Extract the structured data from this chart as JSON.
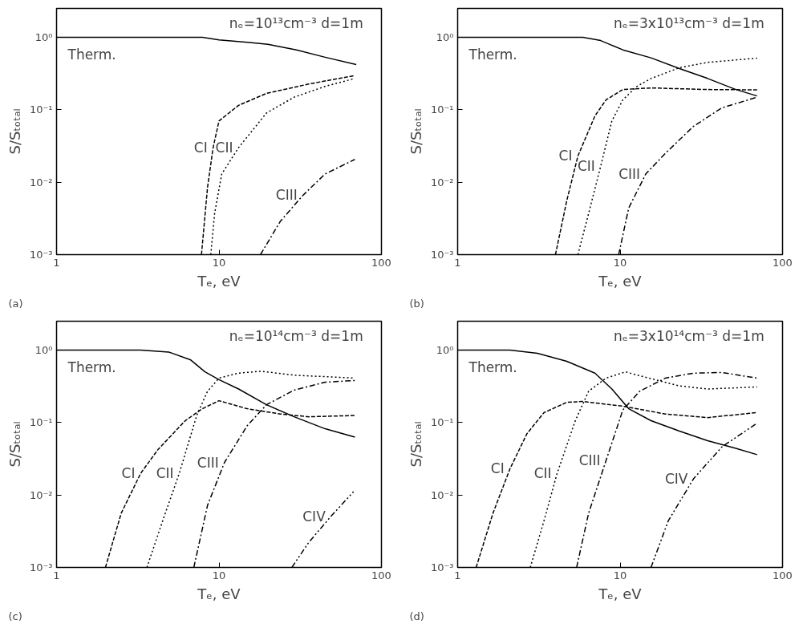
{
  "chart_data": [
    {
      "type": "line",
      "title": "(a)",
      "xlabel": "Tₑ, eV",
      "ylabel": "S/Sₜₒₜₐₗ",
      "log": "xy",
      "grid": false,
      "xlim": [
        1,
        100
      ],
      "ylim": [
        0.001,
        2.5
      ],
      "xticks": [
        1,
        10,
        100
      ],
      "yticks": [
        {
          "value": 0.001,
          "label": "10⁻³"
        },
        {
          "value": 0.01,
          "label": "10⁻²"
        },
        {
          "value": 0.1,
          "label": "10⁻¹"
        },
        {
          "value": 1,
          "label": "10⁰"
        }
      ],
      "series": [
        {
          "name": "Therm.",
          "color": "#000000",
          "line_style": "solid",
          "x": [
            1,
            7.9,
            10,
            15,
            20,
            30,
            45,
            70
          ],
          "values": [
            1,
            1,
            0.92,
            0.85,
            0.8,
            0.67,
            0.53,
            0.42
          ]
        },
        {
          "name": "CI",
          "color": "#000000",
          "line_style": "dashed",
          "x": [
            7.8,
            8.5,
            9.2,
            10,
            13.2,
            19.6,
            35.6,
            68.6
          ],
          "values": [
            0.001,
            0.0085,
            0.03,
            0.07,
            0.115,
            0.168,
            0.226,
            0.296
          ]
        },
        {
          "name": "CII",
          "color": "#000000",
          "line_style": "dotted",
          "x": [
            8.9,
            9.4,
            10.4,
            13.2,
            19.6,
            29,
            45,
            68.6
          ],
          "values": [
            0.001,
            0.0037,
            0.013,
            0.03,
            0.09,
            0.149,
            0.21,
            0.27
          ]
        },
        {
          "name": "CIII",
          "color": "#000000",
          "line_style": "dashdot",
          "x": [
            18,
            23.9,
            32.9,
            45,
            68.6
          ],
          "values": [
            0.001,
            0.0029,
            0.0066,
            0.013,
            0.0206
          ]
        }
      ],
      "annotations": [
        "nₑ=10¹³cm⁻³   d=1m"
      ]
    },
    {
      "type": "line",
      "title": "(b)",
      "xlabel": "Tₑ, eV",
      "ylabel": "S/Sₜₒₜₐₗ",
      "log": "xy",
      "grid": false,
      "xlim": [
        1,
        100
      ],
      "ylim": [
        0.001,
        2.5
      ],
      "xticks": [
        1,
        10,
        100
      ],
      "yticks": [
        {
          "value": 0.001,
          "label": "10⁻³"
        },
        {
          "value": 0.01,
          "label": "10⁻²"
        },
        {
          "value": 0.1,
          "label": "10⁻¹"
        },
        {
          "value": 1,
          "label": "10⁰"
        }
      ],
      "series": [
        {
          "name": "Therm.",
          "color": "#000000",
          "line_style": "solid",
          "x": [
            1,
            5.9,
            7.6,
            10.4,
            15.5,
            23.2,
            34.6,
            51.6,
            69.7
          ],
          "values": [
            1,
            1,
            0.9,
            0.67,
            0.52,
            0.37,
            0.27,
            0.19,
            0.155
          ]
        },
        {
          "name": "CI",
          "color": "#000000",
          "line_style": "dashed",
          "x": [
            4,
            4.7,
            5.5,
            7,
            8.2,
            10.4,
            15.5,
            34.6,
            69.7
          ],
          "values": [
            0.001,
            0.0056,
            0.023,
            0.082,
            0.137,
            0.19,
            0.2,
            0.19,
            0.188
          ]
        },
        {
          "name": "CII",
          "color": "#000000",
          "line_style": "dotted",
          "x": [
            5.5,
            6.4,
            7.6,
            8.9,
            10.4,
            12.7,
            15.5,
            23.2,
            34.6,
            69.7
          ],
          "values": [
            0.001,
            0.0037,
            0.0167,
            0.07,
            0.137,
            0.21,
            0.27,
            0.38,
            0.45,
            0.515
          ]
        },
        {
          "name": "CIII",
          "color": "#000000",
          "line_style": "dashdot",
          "x": [
            9.8,
            11.3,
            14.4,
            19,
            28.3,
            42.3,
            69.7
          ],
          "values": [
            0.001,
            0.0044,
            0.013,
            0.025,
            0.059,
            0.106,
            0.149
          ]
        }
      ],
      "annotations": [
        "nₑ=3x10¹³cm⁻³   d=1m"
      ]
    },
    {
      "type": "line",
      "title": "(c)",
      "xlabel": "Tₑ, eV",
      "ylabel": "S/Sₜₒₜₐₗ",
      "log": "xy",
      "grid": false,
      "xlim": [
        1,
        100
      ],
      "ylim": [
        0.001,
        2.5
      ],
      "xticks": [
        1,
        10,
        100
      ],
      "yticks": [
        {
          "value": 0.001,
          "label": "10⁻³"
        },
        {
          "value": 0.01,
          "label": "10⁻²"
        },
        {
          "value": 0.1,
          "label": "10⁻¹"
        },
        {
          "value": 1,
          "label": "10⁰"
        }
      ],
      "series": [
        {
          "name": "Therm.",
          "color": "#000000",
          "line_style": "solid",
          "x": [
            1,
            3.3,
            4.9,
            6.7,
            8.2,
            10,
            13.2,
            19.6,
            29,
            45,
            68.6
          ],
          "values": [
            1,
            1,
            0.94,
            0.73,
            0.5,
            0.39,
            0.29,
            0.176,
            0.12,
            0.082,
            0.063
          ]
        },
        {
          "name": "CI",
          "color": "#000000",
          "line_style": "dashed",
          "x": [
            2,
            2.5,
            3.3,
            4.2,
            6.2,
            7.9,
            10,
            14.9,
            23.9,
            35.6,
            68.6
          ],
          "values": [
            0.001,
            0.0056,
            0.02,
            0.042,
            0.106,
            0.155,
            0.2,
            0.155,
            0.131,
            0.12,
            0.125
          ]
        },
        {
          "name": "CII",
          "color": "#000000",
          "line_style": "dotted",
          "x": [
            3.6,
            4.5,
            5.7,
            7.3,
            8.5,
            10,
            13.2,
            18.1,
            29,
            68.6
          ],
          "values": [
            0.001,
            0.0044,
            0.02,
            0.126,
            0.27,
            0.41,
            0.48,
            0.51,
            0.45,
            0.41
          ]
        },
        {
          "name": "CIII",
          "color": "#000000",
          "line_style": "dashdot",
          "x": [
            7,
            8.5,
            10.8,
            14.9,
            19.6,
            29,
            45,
            68.6
          ],
          "values": [
            0.001,
            0.0072,
            0.028,
            0.09,
            0.176,
            0.28,
            0.36,
            0.38
          ]
        },
        {
          "name": "CIV",
          "color": "#000000",
          "line_style": "dashdotdot",
          "x": [
            28.1,
            35.6,
            49,
            67.3
          ],
          "values": [
            0.001,
            0.0022,
            0.0051,
            0.0111
          ]
        }
      ],
      "annotations": [
        "nₑ=10¹⁴cm⁻³   d=1m"
      ]
    },
    {
      "type": "line",
      "title": "(d)",
      "xlabel": "Tₑ, eV",
      "ylabel": "S/Sₜₒₜₐₗ",
      "log": "xy",
      "grid": false,
      "xlim": [
        1,
        100
      ],
      "ylim": [
        0.001,
        2.5
      ],
      "xticks": [
        1,
        10,
        100
      ],
      "yticks": [
        {
          "value": 0.001,
          "label": "10⁻³"
        },
        {
          "value": 0.01,
          "label": "10⁻²"
        },
        {
          "value": 0.1,
          "label": "10⁻¹"
        },
        {
          "value": 1,
          "label": "10⁰"
        }
      ],
      "series": [
        {
          "name": "Therm.",
          "color": "#000000",
          "line_style": "solid",
          "x": [
            1,
            2.1,
            3.1,
            4.7,
            7,
            8.9,
            11.3,
            15.5,
            23.2,
            34.6,
            51.6,
            69.7
          ],
          "values": [
            1,
            1,
            0.9,
            0.7,
            0.48,
            0.29,
            0.155,
            0.106,
            0.076,
            0.056,
            0.044,
            0.036
          ]
        },
        {
          "name": "CI",
          "color": "#000000",
          "line_style": "dashed",
          "x": [
            1.3,
            1.65,
            2.1,
            2.67,
            3.4,
            4.7,
            5.9,
            10.4,
            19,
            34.6,
            69.7
          ],
          "values": [
            0.001,
            0.0056,
            0.023,
            0.07,
            0.137,
            0.19,
            0.195,
            0.168,
            0.131,
            0.117,
            0.137
          ]
        },
        {
          "name": "CII",
          "color": "#000000",
          "line_style": "dotted",
          "x": [
            2.8,
            3.4,
            4.1,
            5.3,
            6.4,
            8.2,
            10.8,
            14.4,
            23.2,
            34.6,
            69.7
          ],
          "values": [
            0.001,
            0.0044,
            0.02,
            0.106,
            0.27,
            0.41,
            0.5,
            0.42,
            0.32,
            0.29,
            0.31
          ]
        },
        {
          "name": "CIII",
          "color": "#000000",
          "line_style": "dashdot",
          "x": [
            5.4,
            6.4,
            8.2,
            10.4,
            13.2,
            19,
            28.3,
            42.3,
            69.7
          ],
          "values": [
            0.001,
            0.0056,
            0.03,
            0.149,
            0.27,
            0.41,
            0.48,
            0.49,
            0.41
          ]
        },
        {
          "name": "CIV",
          "color": "#000000",
          "line_style": "dashdotdot",
          "x": [
            15.5,
            19.8,
            28.3,
            42.3,
            69.7
          ],
          "values": [
            0.001,
            0.0044,
            0.0167,
            0.046,
            0.098
          ]
        }
      ],
      "annotations": [
        "nₑ=3x10¹⁴cm⁻³   d=1m"
      ]
    }
  ]
}
